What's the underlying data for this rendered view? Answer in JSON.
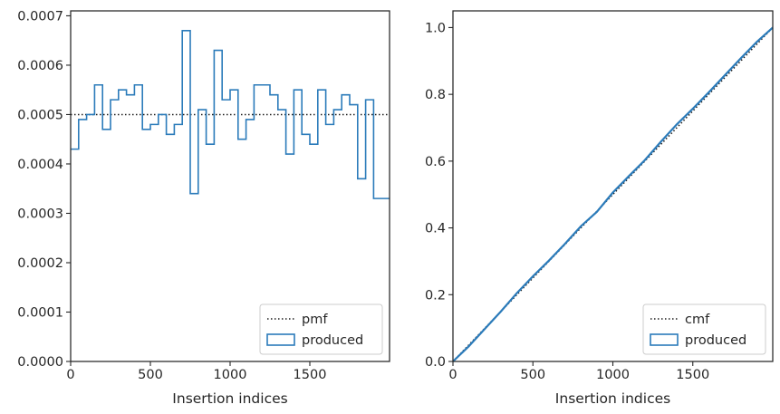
{
  "colors": {
    "hist": "#2b7bba",
    "reference": "#1a1a1a",
    "axes": "#262626"
  },
  "chart_data": [
    {
      "type": "line",
      "xlabel": "Insertion indices",
      "ylabel": "",
      "xlim": [
        0,
        2000
      ],
      "ylim": [
        0,
        0.00071
      ],
      "xticks": [
        0,
        500,
        1000,
        1500
      ],
      "xtick_labels": [
        "0",
        "500",
        "1000",
        "1500"
      ],
      "yticks": [
        0,
        0.0001,
        0.0002,
        0.0003,
        0.0004,
        0.0005,
        0.0006,
        0.0007
      ],
      "ytick_labels": [
        "0.0000",
        "0.0001",
        "0.0002",
        "0.0003",
        "0.0004",
        "0.0005",
        "0.0006",
        "0.0007"
      ],
      "legend_position": "bottom-right",
      "series": [
        {
          "name": "pmf",
          "style": "dotted",
          "x": [
            0,
            2000
          ],
          "y": [
            0.0005,
            0.0005
          ]
        },
        {
          "name": "produced",
          "style": "step-histogram",
          "bin_width": 50,
          "bin_start": 0,
          "values": [
            0.00043,
            0.00049,
            0.0005,
            0.00056,
            0.00047,
            0.00053,
            0.00055,
            0.00054,
            0.00056,
            0.00047,
            0.00048,
            0.0005,
            0.00046,
            0.00048,
            0.00067,
            0.00034,
            0.00051,
            0.00044,
            0.00063,
            0.00053,
            0.00055,
            0.00045,
            0.00049,
            0.00056,
            0.00056,
            0.00054,
            0.00051,
            0.00042,
            0.00055,
            0.00046,
            0.00044,
            0.00055,
            0.00048,
            0.00051,
            0.00054,
            0.00052,
            0.00037,
            0.00053,
            0.00033,
            0.00033
          ]
        }
      ]
    },
    {
      "type": "line",
      "xlabel": "Insertion indices",
      "ylabel": "",
      "xlim": [
        0,
        2000
      ],
      "ylim": [
        0,
        1.05
      ],
      "xticks": [
        0,
        500,
        1000,
        1500
      ],
      "xtick_labels": [
        "0",
        "500",
        "1000",
        "1500"
      ],
      "yticks": [
        0,
        0.2,
        0.4,
        0.6,
        0.8,
        1.0
      ],
      "ytick_labels": [
        "0.0",
        "0.2",
        "0.4",
        "0.6",
        "0.8",
        "1.0"
      ],
      "legend_position": "bottom-right",
      "series": [
        {
          "name": "cmf",
          "style": "dotted",
          "x": [
            0,
            2000
          ],
          "y": [
            0,
            1.0
          ]
        },
        {
          "name": "produced",
          "style": "step-cumulative",
          "x": [
            0,
            100,
            200,
            300,
            400,
            500,
            600,
            700,
            800,
            900,
            1000,
            1100,
            1200,
            1300,
            1400,
            1500,
            1600,
            1700,
            1800,
            1900,
            2000
          ],
          "y": [
            0,
            0.046,
            0.098,
            0.15,
            0.205,
            0.255,
            0.302,
            0.352,
            0.405,
            0.448,
            0.506,
            0.555,
            0.603,
            0.658,
            0.71,
            0.757,
            0.806,
            0.857,
            0.908,
            0.957,
            1.0
          ]
        }
      ]
    }
  ]
}
